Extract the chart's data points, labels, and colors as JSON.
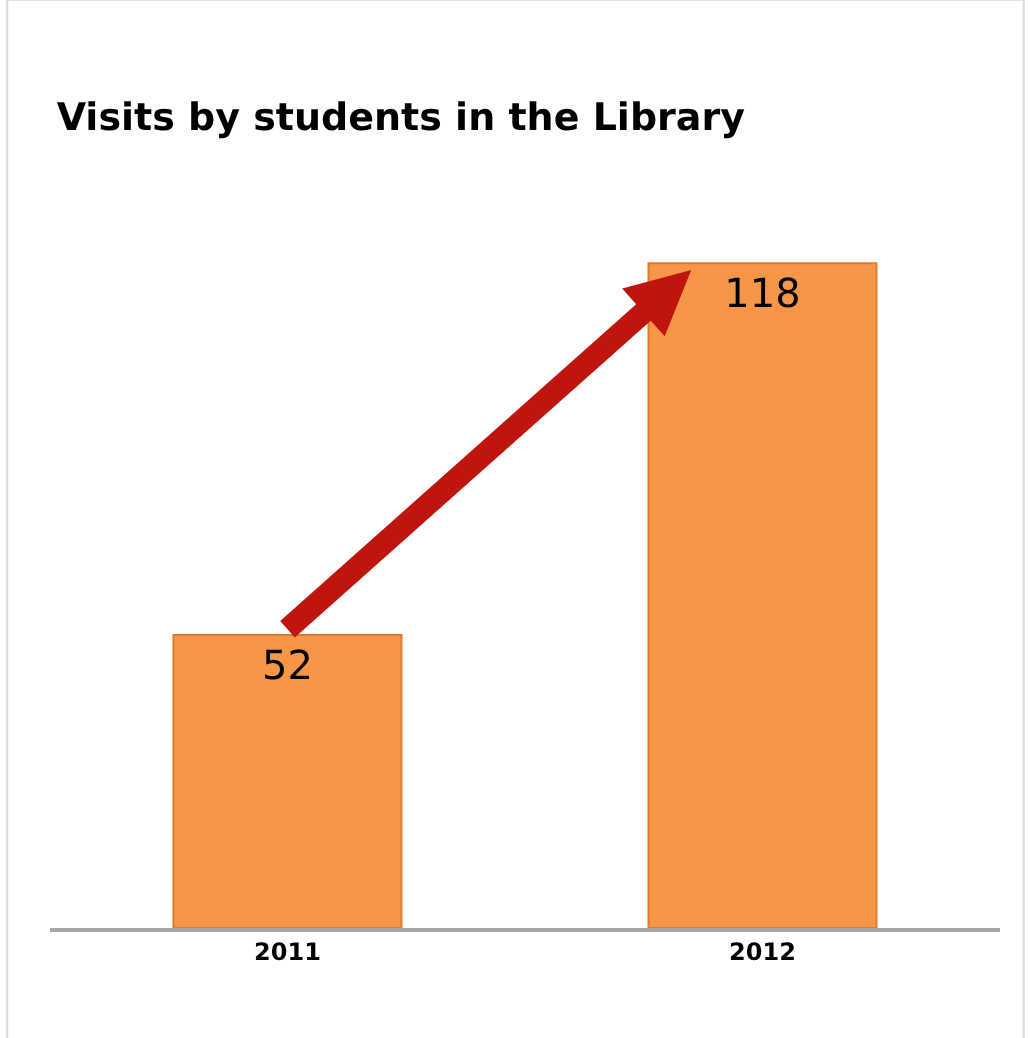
{
  "chart_data": {
    "type": "bar",
    "title": "Visits by students in the Library",
    "categories": [
      "2011",
      "2012"
    ],
    "values": [
      52,
      118
    ],
    "color": "#f79646",
    "data_labels": true,
    "legend": false
  }
}
